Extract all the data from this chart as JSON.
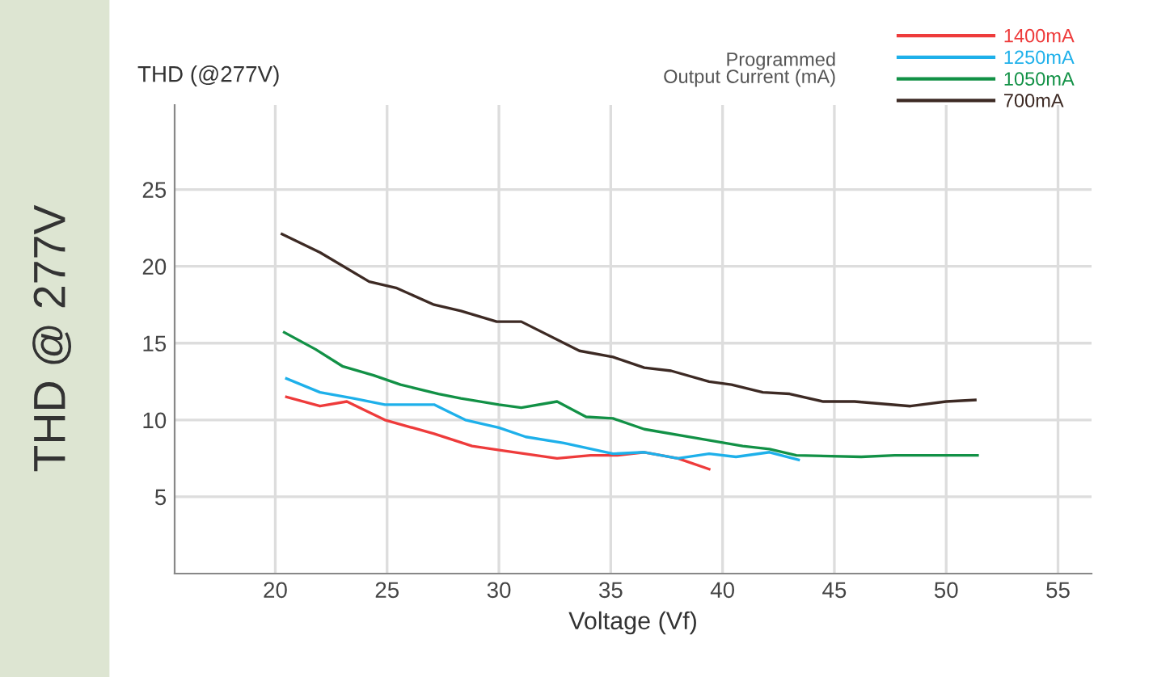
{
  "chart_data": {
    "type": "line",
    "ylabel": "THD @ 277V",
    "xlabel": "Voltage (Vf)",
    "annotations": [
      "THD (@277V)"
    ],
    "legend_title": "Programmed\nOutput Current (mA)",
    "legend": "top right",
    "grid": true,
    "marker": "none",
    "line_style": "solid",
    "xlim": [
      15.5,
      56.5
    ],
    "ylim": [
      0,
      30.5
    ],
    "xticks": [
      20,
      25,
      30,
      35,
      40,
      45,
      50,
      55
    ],
    "yticks": [
      5,
      10,
      15,
      20,
      25
    ],
    "series": [
      {
        "name": "1400mA",
        "color": "#ee3b3b",
        "x": [
          20.5,
          22.0,
          23.2,
          24.9,
          27.1,
          28.8,
          30.2,
          32.6,
          34.1,
          35.3,
          36.5,
          38.0,
          39.4
        ],
        "values": [
          11.5,
          10.9,
          11.2,
          10.0,
          9.1,
          8.3,
          8.0,
          7.5,
          7.7,
          7.7,
          7.9,
          7.5,
          6.8
        ]
      },
      {
        "name": "1250mA",
        "color": "#1eb0ea",
        "x": [
          20.5,
          22.0,
          23.5,
          24.9,
          27.1,
          28.5,
          30.0,
          31.2,
          32.9,
          35.1,
          36.5,
          38.0,
          39.4,
          40.6,
          42.1,
          43.4
        ],
        "values": [
          12.7,
          11.8,
          11.4,
          11.0,
          11.0,
          10.0,
          9.5,
          8.9,
          8.5,
          7.8,
          7.9,
          7.5,
          7.8,
          7.6,
          7.9,
          7.4
        ]
      },
      {
        "name": "1050mA",
        "color": "#129146",
        "x": [
          20.4,
          21.8,
          23.0,
          24.4,
          25.6,
          27.3,
          28.3,
          30.0,
          31.0,
          32.6,
          33.9,
          35.1,
          36.5,
          38.9,
          40.9,
          42.1,
          43.3,
          46.2,
          47.7,
          51.4
        ],
        "values": [
          15.7,
          14.6,
          13.5,
          12.9,
          12.3,
          11.7,
          11.4,
          11.0,
          10.8,
          11.2,
          10.2,
          10.1,
          9.4,
          8.8,
          8.3,
          8.1,
          7.7,
          7.6,
          7.7,
          7.7
        ]
      },
      {
        "name": "700mA",
        "color": "#3d2a24",
        "x": [
          20.3,
          22.0,
          24.2,
          25.4,
          27.1,
          28.3,
          29.9,
          31.0,
          33.6,
          35.1,
          36.5,
          37.7,
          39.4,
          40.4,
          41.8,
          43.0,
          44.5,
          45.9,
          48.4,
          50.0,
          51.3
        ],
        "values": [
          22.1,
          20.9,
          19.0,
          18.6,
          17.5,
          17.1,
          16.4,
          16.4,
          14.5,
          14.1,
          13.4,
          13.2,
          12.5,
          12.3,
          11.8,
          11.7,
          11.2,
          11.2,
          10.9,
          11.2,
          11.3
        ]
      }
    ]
  }
}
